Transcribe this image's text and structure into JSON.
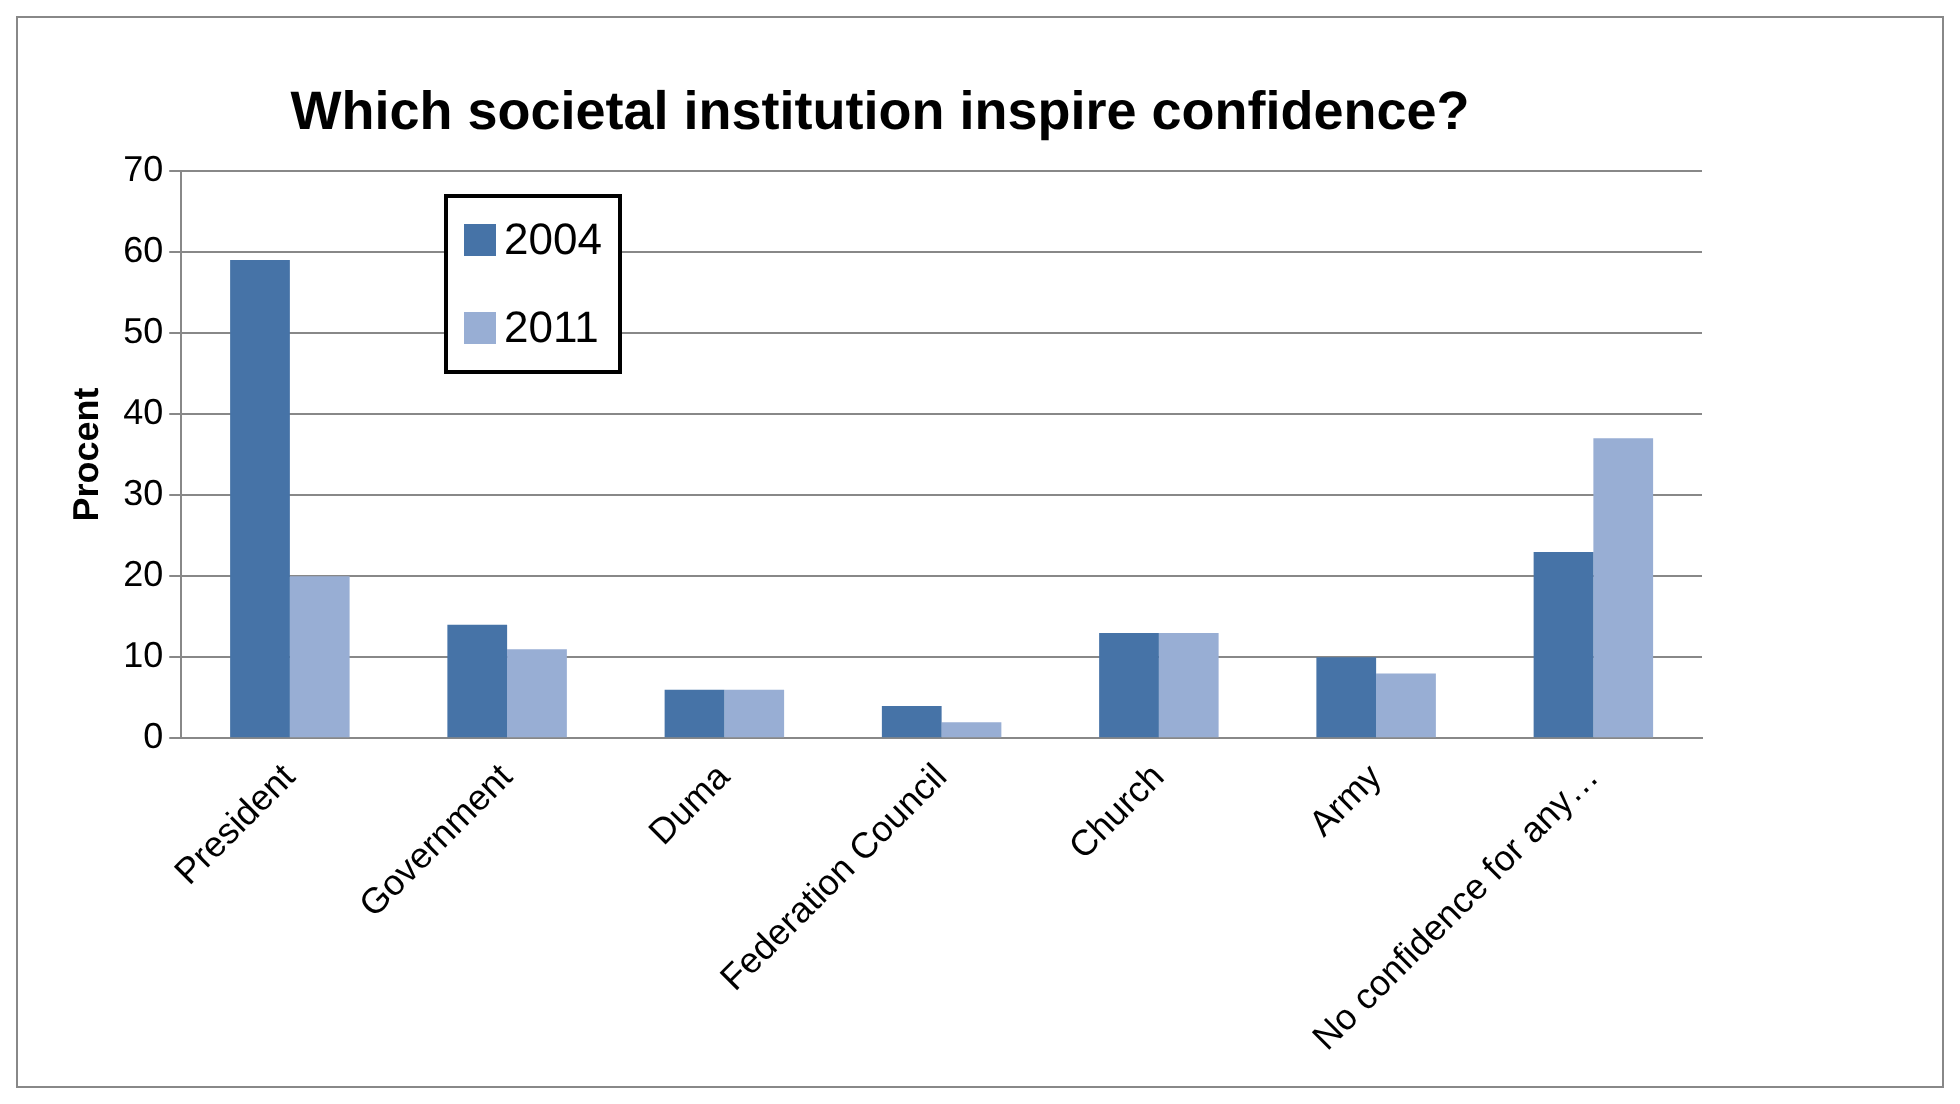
{
  "chart_data": {
    "type": "bar",
    "title": "Which societal institution inspire confidence?",
    "ylabel": "Procent",
    "categories": [
      "President",
      "Government",
      "Duma",
      "Federation Council",
      "Church",
      "Army",
      "No confidence for any…"
    ],
    "series": [
      {
        "name": "2004",
        "color": "#4673a7",
        "values": [
          59,
          14,
          6,
          4,
          13,
          10,
          23
        ]
      },
      {
        "name": "2011",
        "color": "#98aed4",
        "values": [
          20,
          11,
          6,
          2,
          13,
          8,
          37
        ]
      }
    ],
    "ylim": [
      0,
      70
    ],
    "yticks": [
      0,
      10,
      20,
      30,
      40,
      50,
      60,
      70
    ],
    "grid": "y",
    "legend": "top left"
  }
}
